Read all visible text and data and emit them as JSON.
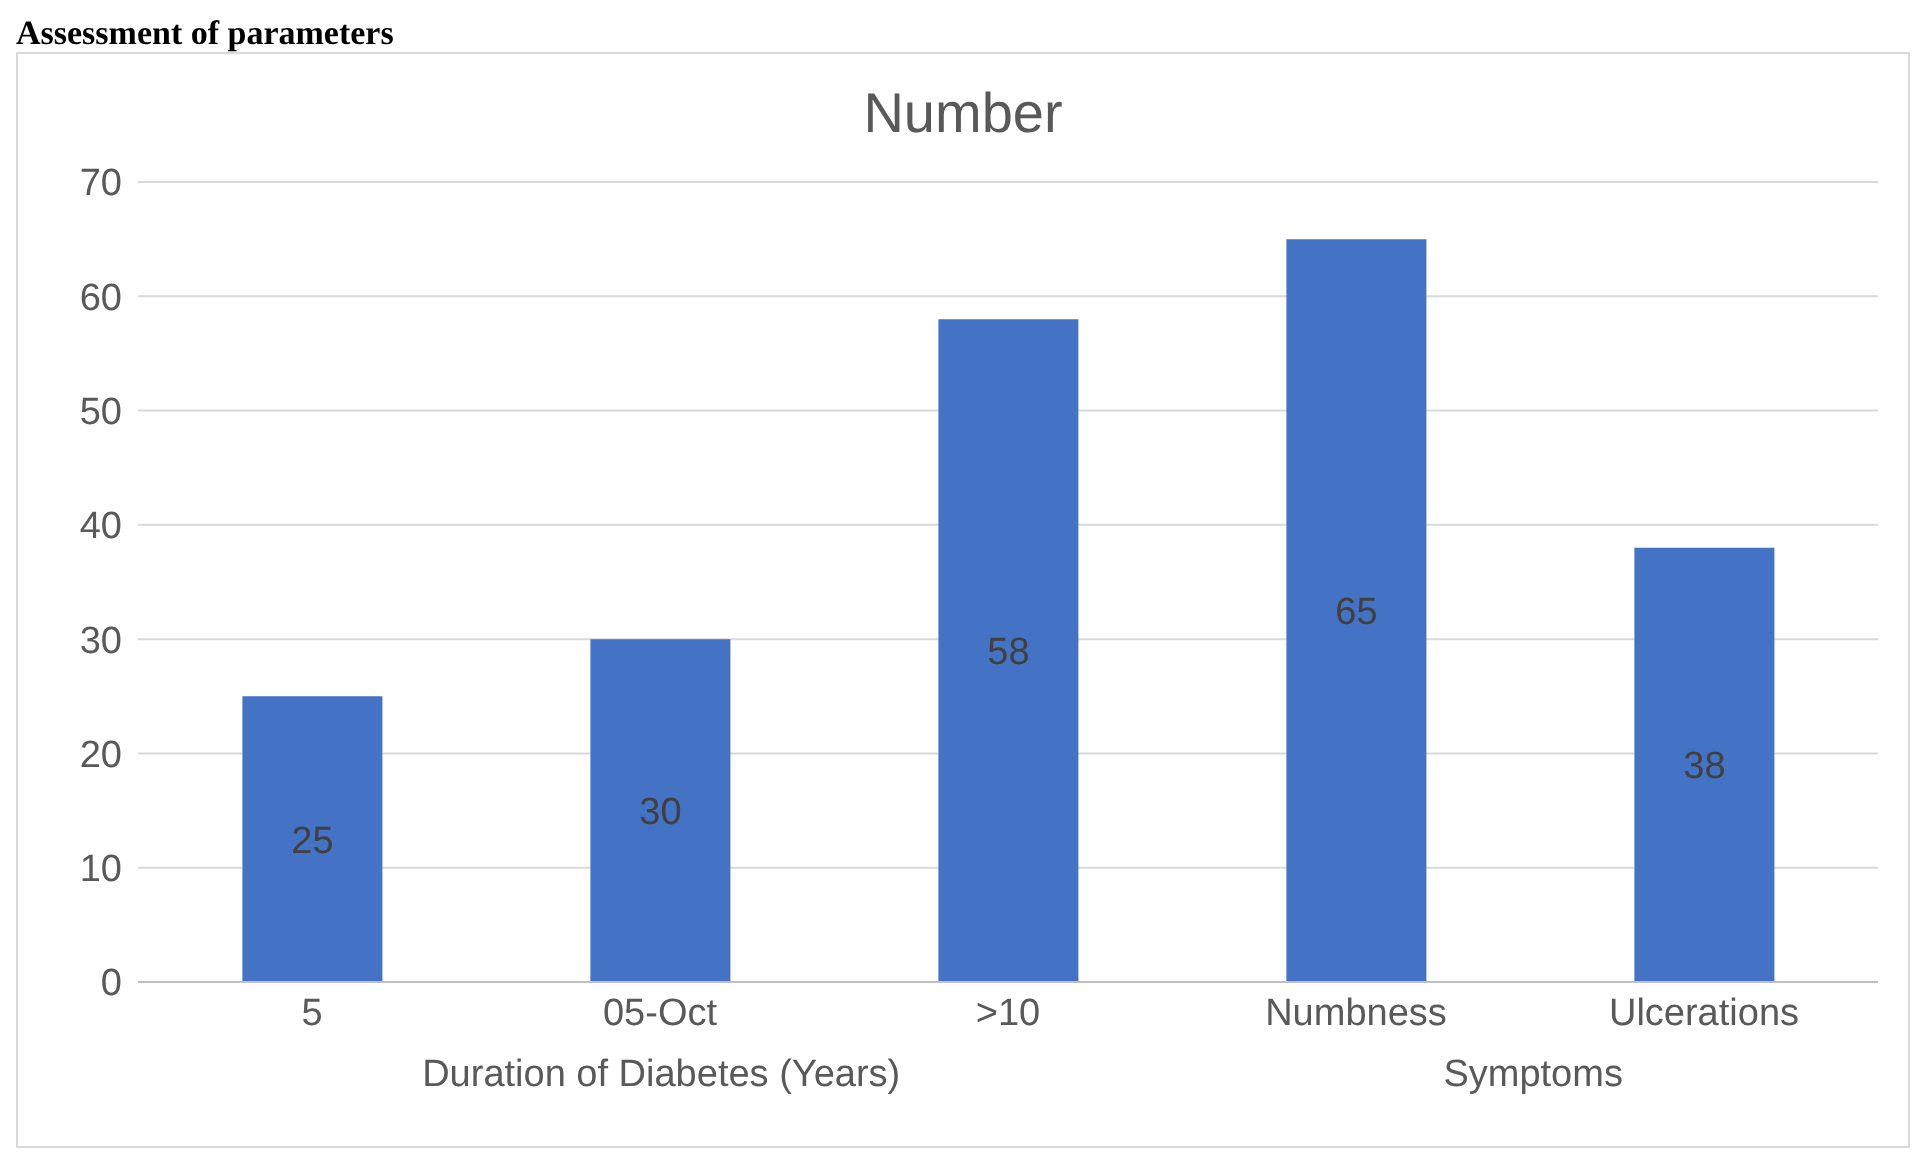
{
  "chart_data": {
    "type": "bar",
    "title": "Number",
    "categories": [
      "5",
      "05-Oct",
      ">10",
      "Numbness",
      "Ulcerations"
    ],
    "values": [
      25,
      30,
      58,
      65,
      38
    ],
    "color": "#4472c4",
    "ylim": [
      0,
      70
    ],
    "yticks": [
      0,
      10,
      20,
      30,
      40,
      50,
      60,
      70
    ],
    "grid": "y",
    "data_labels": true,
    "annotations": [
      "Assessment of parameters",
      "Duration of Diabetes (Years)",
      "Symptoms"
    ]
  }
}
